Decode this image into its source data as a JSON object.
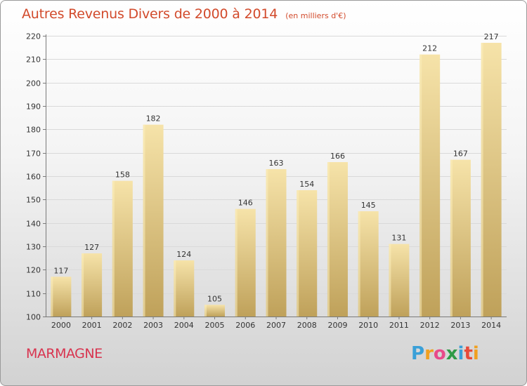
{
  "header": {
    "title": "Autres Revenus Divers de 2000 à 2014",
    "subtitle": "(en milliers d'€)"
  },
  "footer": {
    "commune": "MARMAGNE",
    "logo": "Proxiti",
    "logo_colors": [
      "#3aa0d8",
      "#f0a020",
      "#e84a8a",
      "#2e9a46",
      "#3aa0d8",
      "#e84a3a",
      "#f0a020"
    ]
  },
  "colors": {
    "bar": "#e3c77f",
    "bar_light": "#f6e3a9",
    "bar_dark": "#bfa15a",
    "title": "#d24a2b",
    "commune": "#d8344f"
  },
  "chart_data": {
    "type": "bar",
    "title": "Autres Revenus Divers de 2000 à 2014",
    "subtitle": "(en milliers d'€)",
    "categories": [
      "2000",
      "2001",
      "2002",
      "2003",
      "2004",
      "2005",
      "2006",
      "2007",
      "2008",
      "2009",
      "2010",
      "2011",
      "2012",
      "2013",
      "2014"
    ],
    "values": [
      117,
      127,
      158,
      182,
      124,
      105,
      146,
      163,
      154,
      166,
      145,
      131,
      212,
      167,
      217
    ],
    "ylim": [
      100,
      220
    ],
    "yticks": [
      100,
      110,
      120,
      130,
      140,
      150,
      160,
      170,
      180,
      190,
      200,
      210,
      220
    ],
    "xlabel": "",
    "ylabel": "",
    "grid": true
  }
}
